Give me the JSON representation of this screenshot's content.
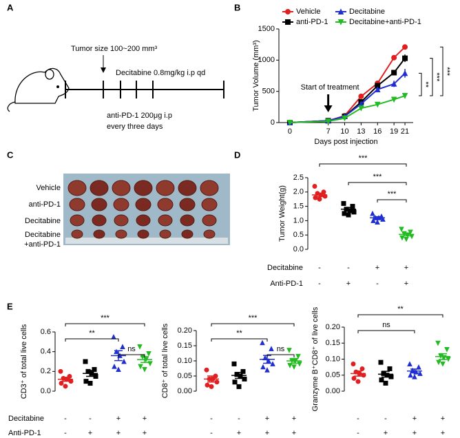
{
  "schematic": {
    "panel": "A",
    "size_label": "Tumor size 100~200 mm³",
    "decitabine_label": "Decitabine 0.8mg/kg i.p qd",
    "antipd1_lines": [
      "anti-PD-1 200μg i.p",
      "every three days"
    ]
  },
  "photo": {
    "panel": "C",
    "row_labels": [
      [
        "Vehicle"
      ],
      [
        "anti-PD-1"
      ],
      [
        "Decitabine"
      ],
      [
        "Decitabine",
        "+anti-PD-1"
      ]
    ]
  },
  "chart_data": [
    {
      "type": "line",
      "panel": "B",
      "xlabel": "Days post injection",
      "ylabel": "Tumor Volume (mm³)",
      "x": [
        0,
        7,
        10,
        13,
        16,
        19,
        21
      ],
      "xlim": [
        -2,
        22.5
      ],
      "xticks": [
        0,
        7,
        10,
        13,
        16,
        19,
        21
      ],
      "ylim": [
        0,
        1500
      ],
      "yticks": [
        0,
        500,
        1000,
        1500
      ],
      "annotation": "Start of treatment",
      "annotation_x": 7,
      "series": [
        {
          "name": "Vehicle",
          "color": "#e02020",
          "marker": "circle",
          "values": [
            0,
            30,
            110,
            420,
            630,
            1040,
            1210
          ],
          "errors": [
            0,
            5,
            10,
            30,
            30,
            40,
            40
          ]
        },
        {
          "name": "anti-PD-1",
          "color": "#000000",
          "marker": "square",
          "values": [
            0,
            30,
            100,
            330,
            590,
            800,
            1030
          ],
          "errors": [
            0,
            5,
            10,
            30,
            30,
            30,
            60
          ]
        },
        {
          "name": "Decitabine",
          "color": "#1f2fd0",
          "marker": "triangle",
          "values": [
            0,
            30,
            100,
            300,
            530,
            620,
            790
          ],
          "errors": [
            0,
            5,
            10,
            30,
            40,
            50,
            70
          ]
        },
        {
          "name": "Decitabine+anti-PD-1",
          "color": "#22bb22",
          "marker": "triangle-down",
          "values": [
            0,
            20,
            70,
            230,
            290,
            370,
            430
          ],
          "errors": [
            0,
            5,
            10,
            20,
            20,
            30,
            40
          ]
        }
      ],
      "comparisons": [
        {
          "from": 2,
          "to": 3,
          "label": "**"
        },
        {
          "from": 1,
          "to": 3,
          "label": "***"
        },
        {
          "from": 0,
          "to": 3,
          "label": "***"
        }
      ]
    },
    {
      "type": "dotplot",
      "panel": "D",
      "ylabel": "Tumor Weight(g)",
      "ylim": [
        0,
        2.5
      ],
      "yticks": [
        {
          "value": 0,
          "label": "0.0"
        },
        0.5,
        {
          "value": 1,
          "label": "1.0"
        },
        1.5,
        {
          "value": 2,
          "label": "2.0"
        },
        2.5
      ],
      "series": [
        {
          "color": "#e02020",
          "marker": "circle",
          "values": [
            2.2,
            2.0,
            1.95,
            1.9,
            1.85,
            1.8,
            1.75
          ],
          "mean": 1.9,
          "sem": 0.06
        },
        {
          "color": "#000000",
          "marker": "square",
          "values": [
            1.6,
            1.5,
            1.4,
            1.35,
            1.3,
            1.25,
            1.2
          ],
          "mean": 1.4,
          "sem": 0.06
        },
        {
          "color": "#1f2fd0",
          "marker": "triangle",
          "values": [
            1.25,
            1.15,
            1.1,
            1.1,
            1.05,
            1.0,
            0.95
          ],
          "mean": 1.1,
          "sem": 0.04
        },
        {
          "color": "#22bb22",
          "marker": "triangle-down",
          "values": [
            0.7,
            0.6,
            0.55,
            0.5,
            0.45,
            0.4,
            0.35
          ],
          "mean": 0.52,
          "sem": 0.05
        }
      ],
      "comparisons": [
        {
          "from": 0,
          "to": 3,
          "label": "***"
        },
        {
          "from": 1,
          "to": 3,
          "label": "***"
        },
        {
          "from": 2,
          "to": 3,
          "label": "***"
        }
      ],
      "treatment_labels": [
        "Decitabine",
        "Anti-PD-1"
      ],
      "treatment_signs": [
        [
          "-",
          "-",
          "+",
          "+"
        ],
        [
          "-",
          "+",
          "-",
          "+"
        ]
      ]
    },
    {
      "type": "dotplot",
      "panel": "E",
      "ylabel": "CD3⁺ of total live cells",
      "ylim": [
        0,
        0.6
      ],
      "yticks": [
        {
          "value": 0,
          "label": "0.0"
        },
        0.2,
        0.4,
        0.6
      ],
      "series": [
        {
          "color": "#e02020",
          "marker": "circle",
          "values": [
            0.2,
            0.15,
            0.13,
            0.12,
            0.1,
            0.08,
            0.05
          ],
          "mean": 0.12,
          "sem": 0.02
        },
        {
          "color": "#000000",
          "marker": "square",
          "values": [
            0.3,
            0.22,
            0.2,
            0.18,
            0.15,
            0.1,
            0.08
          ],
          "mean": 0.18,
          "sem": 0.03
        },
        {
          "color": "#1f2fd0",
          "marker": "triangle",
          "values": [
            0.55,
            0.45,
            0.4,
            0.36,
            0.3,
            0.25,
            0.22
          ],
          "mean": 0.36,
          "sem": 0.05
        },
        {
          "color": "#22bb22",
          "marker": "triangle-down",
          "values": [
            0.45,
            0.38,
            0.35,
            0.32,
            0.28,
            0.25,
            0.22
          ],
          "mean": 0.32,
          "sem": 0.03
        }
      ],
      "comparisons": [
        {
          "from": 0,
          "to": 3,
          "label": "***"
        },
        {
          "from": 0,
          "to": 2,
          "label": "**"
        },
        {
          "from": 2,
          "to": 3,
          "label": "ns"
        }
      ],
      "treatment_labels": [
        "Decitabine",
        "Anti-PD-1"
      ],
      "treatment_signs": [
        [
          "-",
          "-",
          "+",
          "+"
        ],
        [
          "-",
          "+",
          "+",
          "+"
        ]
      ]
    },
    {
      "type": "dotplot",
      "ylabel": "CD8⁺ of total live cells",
      "ylim": [
        0,
        0.2
      ],
      "yticks": [
        {
          "value": 0,
          "label": "0.00"
        },
        0.05,
        {
          "value": 0.1,
          "label": "0.10"
        },
        0.15,
        {
          "value": 0.2,
          "label": "0.20"
        }
      ],
      "series": [
        {
          "color": "#e02020",
          "marker": "circle",
          "values": [
            0.07,
            0.05,
            0.04,
            0.04,
            0.03,
            0.02,
            0.015
          ],
          "mean": 0.04,
          "sem": 0.01
        },
        {
          "color": "#000000",
          "marker": "square",
          "values": [
            0.09,
            0.065,
            0.055,
            0.05,
            0.04,
            0.03,
            0.015
          ],
          "mean": 0.052,
          "sem": 0.01
        },
        {
          "color": "#1f2fd0",
          "marker": "triangle",
          "values": [
            0.16,
            0.14,
            0.11,
            0.1,
            0.09,
            0.08,
            0.07
          ],
          "mean": 0.105,
          "sem": 0.013
        },
        {
          "color": "#22bb22",
          "marker": "triangle-down",
          "values": [
            0.135,
            0.115,
            0.1,
            0.1,
            0.09,
            0.085,
            0.08
          ],
          "mean": 0.1,
          "sem": 0.008
        }
      ],
      "comparisons": [
        {
          "from": 0,
          "to": 3,
          "label": "***"
        },
        {
          "from": 0,
          "to": 2,
          "label": "**"
        },
        {
          "from": 2,
          "to": 3,
          "label": "ns"
        }
      ],
      "treatment_signs": [
        [
          "-",
          "-",
          "+",
          "+"
        ],
        [
          "-",
          "+",
          "+",
          "+"
        ]
      ]
    },
    {
      "type": "dotplot",
      "ylabel": "Granzyme B⁺CD8⁺ of  live cells",
      "ylim": [
        0,
        0.2
      ],
      "yticks": [
        {
          "value": 0,
          "label": "0.00"
        },
        0.05,
        {
          "value": 0.1,
          "label": "0.10"
        },
        0.15,
        {
          "value": 0.2,
          "label": "0.20"
        }
      ],
      "series": [
        {
          "color": "#e02020",
          "marker": "circle",
          "values": [
            0.085,
            0.07,
            0.06,
            0.055,
            0.05,
            0.04,
            0.03
          ],
          "mean": 0.055,
          "sem": 0.008
        },
        {
          "color": "#000000",
          "marker": "square",
          "values": [
            0.09,
            0.07,
            0.055,
            0.05,
            0.045,
            0.035,
            0.025
          ],
          "mean": 0.053,
          "sem": 0.009
        },
        {
          "color": "#1f2fd0",
          "marker": "triangle",
          "values": [
            0.085,
            0.075,
            0.065,
            0.06,
            0.055,
            0.05,
            0.045
          ],
          "mean": 0.063,
          "sem": 0.006
        },
        {
          "color": "#22bb22",
          "marker": "triangle-down",
          "values": [
            0.15,
            0.13,
            0.11,
            0.105,
            0.1,
            0.09,
            0.085
          ],
          "mean": 0.108,
          "sem": 0.009
        }
      ],
      "comparisons": [
        {
          "from": 0,
          "to": 3,
          "label": "**"
        },
        {
          "from": 0,
          "to": 2,
          "label": "ns"
        }
      ],
      "treatment_signs": [
        [
          "-",
          "-",
          "+",
          "+"
        ],
        [
          "-",
          "+",
          "+",
          "+"
        ]
      ]
    }
  ]
}
